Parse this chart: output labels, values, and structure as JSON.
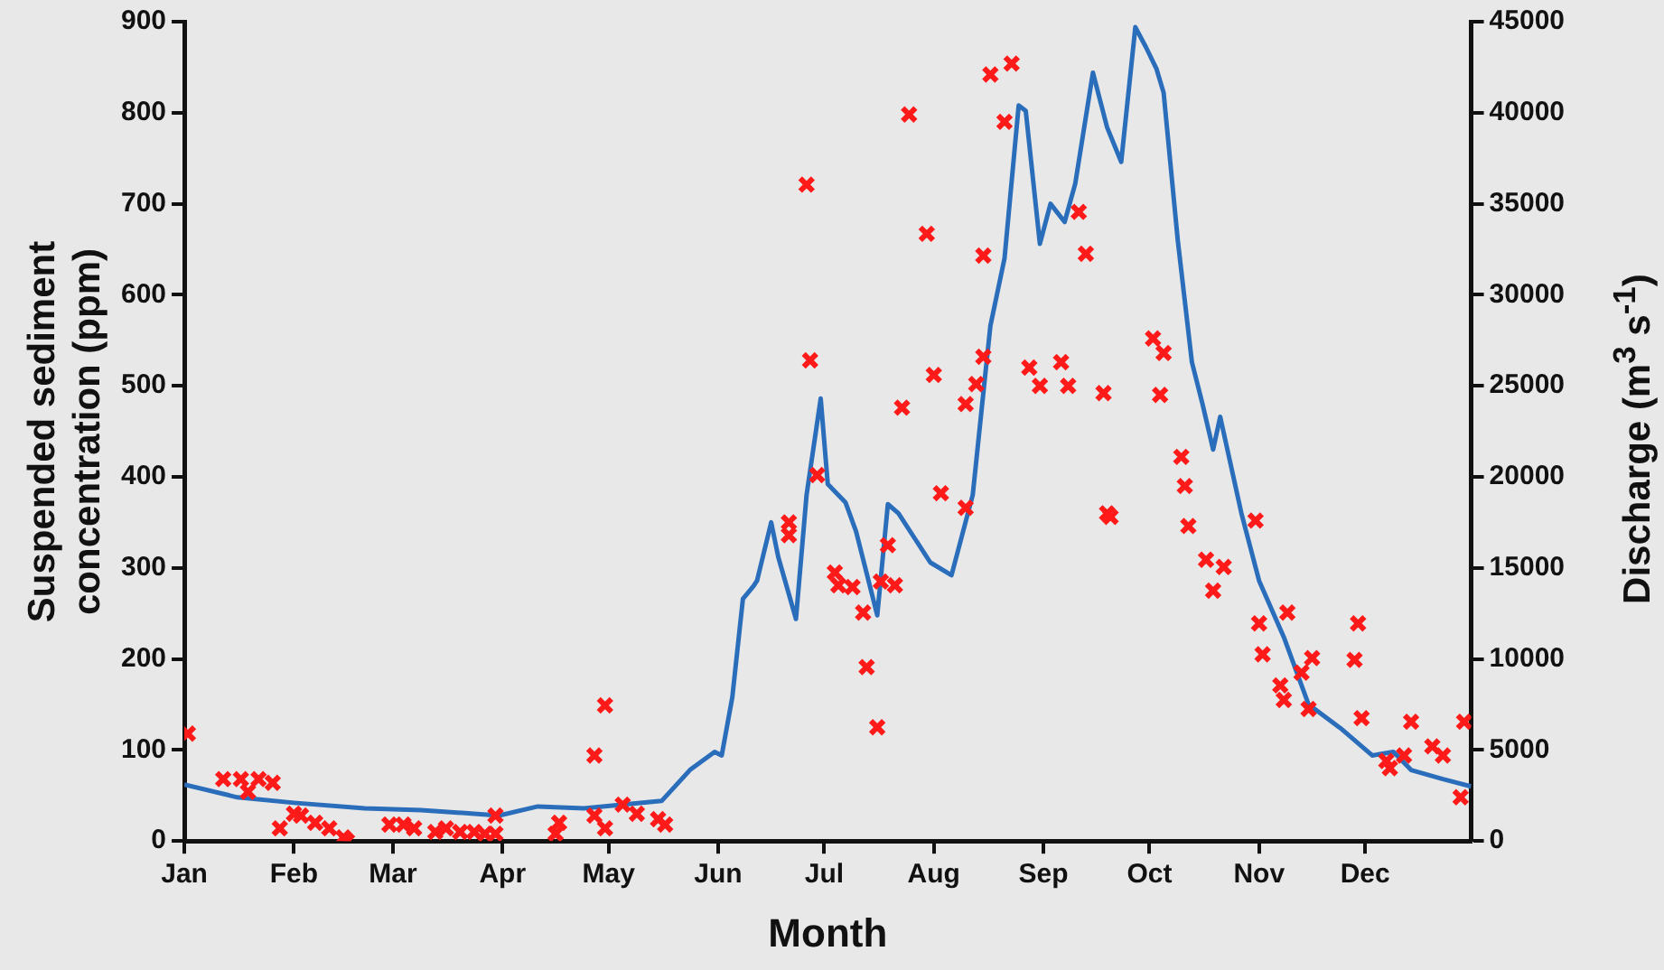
{
  "chart_data": {
    "type": "line",
    "xlabel": "Month",
    "ylabel": "Suspended sediment concentration (ppm)",
    "y2label": "Discharge (m$^{3}$ s$^{-1}$)",
    "xlim": [
      "--01-01",
      "--12-31"
    ],
    "xticks": [
      {
        "value": "--01-01",
        "label": "Jan"
      },
      {
        "value": "--02-01",
        "label": "Feb"
      },
      {
        "value": "--03-01",
        "label": "Mar"
      },
      {
        "value": "--04-01",
        "label": "Apr"
      },
      {
        "value": "--05-01",
        "label": "May"
      },
      {
        "value": "--06-01",
        "label": "Jun"
      },
      {
        "value": "--07-01",
        "label": "Jul"
      },
      {
        "value": "--08-01",
        "label": "Aug"
      },
      {
        "value": "--09-01",
        "label": "Sep"
      },
      {
        "value": "--10-01",
        "label": "Oct"
      },
      {
        "value": "--11-01",
        "label": "Nov"
      },
      {
        "value": "--12-01",
        "label": "Dec"
      }
    ],
    "ylim": [
      0,
      900
    ],
    "yticks": [
      0,
      100,
      200,
      300,
      400,
      500,
      600,
      700,
      800,
      900
    ],
    "y2lim": [
      0,
      45000
    ],
    "y2ticks": [
      0,
      5000,
      10000,
      15000,
      20000,
      25000,
      30000,
      35000,
      40000,
      45000
    ],
    "grid": false,
    "legend": false,
    "series": [
      {
        "type": "scatter",
        "color": "#ff1a1a",
        "marker": "cross",
        "x": [
          "--01-02",
          "--01-12",
          "--01-17",
          "--01-19",
          "--01-22",
          "--01-26",
          "--01-28",
          "--02-01",
          "--02-03",
          "--02-07",
          "--02-11",
          "--02-15",
          "--02-16",
          "--02-28",
          "--03-04",
          "--03-07",
          "--03-13",
          "--03-16",
          "--03-20",
          "--03-24",
          "--03-27",
          "--03-30",
          "--03-30",
          "--04-16",
          "--04-17",
          "--04-27",
          "--04-30",
          "--04-27",
          "--04-30",
          "--05-05",
          "--05-09",
          "--05-15",
          "--05-17",
          "--06-26",
          "--06-27",
          "--06-29",
          "--06-21",
          "--06-21",
          "--07-04",
          "--07-05",
          "--07-09",
          "--07-12",
          "--07-13",
          "--07-16",
          "--07-17",
          "--07-21",
          "--07-19",
          "--07-25",
          "--07-23",
          "--07-30",
          "--08-01",
          "--08-03",
          "--08-10",
          "--08-10",
          "--08-13",
          "--08-15",
          "--08-15",
          "--08-17",
          "--08-23",
          "--08-21",
          "--08-28",
          "--08-31",
          "--09-06",
          "--09-08",
          "--09-11",
          "--09-13",
          "--09-18",
          "--09-19",
          "--09-20",
          "--10-02",
          "--10-05",
          "--10-04",
          "--10-10",
          "--10-11",
          "--10-12",
          "--10-17",
          "--10-19",
          "--10-22",
          "--10-31",
          "--11-01",
          "--11-02",
          "--11-09",
          "--11-07",
          "--11-08",
          "--11-13",
          "--11-16",
          "--11-15",
          "--11-29",
          "--11-28",
          "--11-30",
          "--12-07",
          "--12-08",
          "--12-14",
          "--12-12",
          "--12-20",
          "--12-23",
          "--12-28",
          "--12-29"
        ],
        "values": [
          118,
          68,
          68,
          54,
          68,
          64,
          14,
          30,
          28,
          20,
          14,
          4,
          0,
          18,
          18,
          14,
          10,
          14,
          10,
          10,
          8,
          28,
          8,
          8,
          20,
          94,
          149,
          28,
          14,
          40,
          30,
          24,
          18,
          721,
          528,
          402,
          350,
          336,
          295,
          281,
          279,
          251,
          191,
          125,
          285,
          281,
          325,
          798,
          476,
          667,
          512,
          382,
          366,
          480,
          502,
          532,
          643,
          842,
          854,
          790,
          520,
          500,
          526,
          500,
          691,
          645,
          492,
          360,
          356,
          552,
          536,
          490,
          422,
          390,
          346,
          309,
          275,
          301,
          352,
          239,
          205,
          251,
          171,
          155,
          185,
          201,
          145,
          239,
          199,
          135,
          88,
          80,
          131,
          94,
          104,
          94,
          48,
          131
        ]
      },
      {
        "type": "line",
        "axis": "y2",
        "color": "#2a6ebb",
        "marker": "none",
        "x": [
          "--01-01",
          "--01-16",
          "--02-01",
          "--02-21",
          "--03-09",
          "--03-31",
          "--04-11",
          "--04-24",
          "--05-16",
          "--05-24",
          "--05-31",
          "--06-02",
          "--06-05",
          "--06-08",
          "--06-11",
          "--06-12",
          "--06-16",
          "--06-18",
          "--06-23",
          "--06-26",
          "--06-30",
          "--07-02",
          "--07-07",
          "--07-10",
          "--07-16",
          "--07-19",
          "--07-22",
          "--07-31",
          "--08-06",
          "--08-12",
          "--08-15",
          "--08-17",
          "--08-21",
          "--08-25",
          "--08-27",
          "--08-31",
          "--09-03",
          "--09-07",
          "--09-10",
          "--09-15",
          "--09-19",
          "--09-23",
          "--09-27",
          "--09-30",
          "--10-03",
          "--10-05",
          "--10-09",
          "--10-13",
          "--10-16",
          "--10-19",
          "--10-21",
          "--10-27",
          "--11-01",
          "--11-08",
          "--11-15",
          "--11-24",
          "--12-03",
          "--12-09",
          "--12-14",
          "--12-23",
          "--12-31"
        ],
        "values": [
          3100,
          2400,
          2100,
          1800,
          1700,
          1400,
          1900,
          1800,
          2200,
          3900,
          4900,
          4700,
          7900,
          13300,
          14000,
          14300,
          17500,
          15600,
          12200,
          19000,
          24300,
          19600,
          18600,
          17000,
          12400,
          18500,
          18000,
          15300,
          14600,
          19000,
          24600,
          28300,
          32000,
          40400,
          40100,
          32800,
          35000,
          34000,
          36100,
          42200,
          39200,
          37300,
          44700,
          43600,
          42400,
          41100,
          33000,
          26300,
          24000,
          21500,
          23300,
          18000,
          14300,
          11200,
          7500,
          6200,
          4700,
          4900,
          3900,
          3400,
          3000
        ]
      }
    ]
  }
}
